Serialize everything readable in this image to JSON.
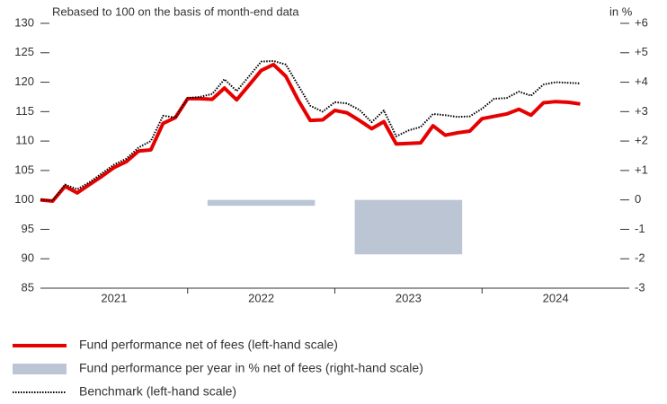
{
  "chart_data": {
    "type": "line",
    "subtitle": "Rebased to 100 on the basis of month-end data",
    "y2_label": "in %",
    "xlim": [
      2021,
      2025
    ],
    "xticks": [
      2021,
      2022,
      2023,
      2024
    ],
    "ylim": [
      85,
      130
    ],
    "yticks": [
      85,
      90,
      95,
      100,
      105,
      110,
      115,
      120,
      125,
      130
    ],
    "y2lim": [
      -3,
      6
    ],
    "y2ticks": [
      -3,
      -2,
      -1,
      0,
      {
        "value": 1,
        "label": "+1"
      },
      {
        "value": 2,
        "label": "+2"
      },
      {
        "value": 3,
        "label": "+3"
      },
      {
        "value": 4,
        "label": "+4"
      },
      {
        "value": 5,
        "label": "+5"
      },
      {
        "value": 6,
        "label": "+6"
      }
    ],
    "series": [
      {
        "name": "Fund performance net of fees (left-hand scale)",
        "type": "line",
        "color": "#e60000",
        "x": [
          2021,
          2021.083,
          2021.167,
          2021.25,
          2021.333,
          2021.417,
          2021.5,
          2021.583,
          2021.667,
          2021.75,
          2021.833,
          2021.917,
          2022,
          2022.083,
          2022.167,
          2022.25,
          2022.333,
          2022.417,
          2022.5,
          2022.583,
          2022.667,
          2022.75,
          2022.833,
          2022.917,
          2023,
          2023.083,
          2023.167,
          2023.25,
          2023.333,
          2023.417,
          2023.5,
          2023.583,
          2023.667,
          2023.75,
          2023.833,
          2023.917,
          2024,
          2024.083,
          2024.167,
          2024.25,
          2024.333,
          2024.417,
          2024.5,
          2024.583,
          2024.667
        ],
        "values": [
          100,
          99.8,
          102.3,
          101.2,
          102.6,
          104,
          105.5,
          106.5,
          108.3,
          108.5,
          113,
          114,
          117.2,
          117.2,
          117.1,
          119,
          117,
          119.5,
          122,
          123,
          121,
          117,
          113.5,
          113.6,
          115.2,
          114.8,
          113.5,
          112.1,
          113.3,
          109.5,
          109.6,
          109.7,
          112.6,
          111,
          111.4,
          111.7,
          113.8,
          114.2,
          114.6,
          115.4,
          114.4,
          116.5,
          116.7,
          116.6,
          116.3
        ]
      },
      {
        "name": "Fund performance per year in % net of fees (right-hand scale)",
        "type": "bar",
        "axis": "y2",
        "color": "#bcc5d3",
        "x": [
          2022.5,
          2023.5
        ],
        "values": [
          -0.2,
          -1.85
        ]
      },
      {
        "name": "Benchmark (left-hand scale)",
        "type": "line",
        "color": "#000000",
        "dotted": true,
        "x": [
          2021,
          2021.083,
          2021.167,
          2021.25,
          2021.333,
          2021.417,
          2021.5,
          2021.583,
          2021.667,
          2021.75,
          2021.833,
          2021.917,
          2022,
          2022.083,
          2022.167,
          2022.25,
          2022.333,
          2022.417,
          2022.5,
          2022.583,
          2022.667,
          2022.75,
          2022.833,
          2022.917,
          2023,
          2023.083,
          2023.167,
          2023.25,
          2023.333,
          2023.417,
          2023.5,
          2023.583,
          2023.667,
          2023.75,
          2023.833,
          2023.917,
          2024,
          2024.083,
          2024.167,
          2024.25,
          2024.333,
          2024.417,
          2024.5,
          2024.583,
          2024.667
        ],
        "values": [
          100,
          99.9,
          102.6,
          101.8,
          103,
          104.5,
          106,
          107,
          108.9,
          110,
          114.3,
          114,
          117.3,
          117.5,
          118,
          120.5,
          118.5,
          121,
          123.5,
          123.6,
          123,
          119.5,
          116,
          115,
          116.6,
          116.4,
          115.3,
          113.2,
          115.2,
          110.8,
          111.8,
          112.4,
          114.6,
          114.4,
          114.1,
          114.2,
          115.5,
          117.2,
          117.3,
          118.4,
          117.7,
          119.6,
          120,
          119.9,
          119.8
        ]
      }
    ]
  }
}
